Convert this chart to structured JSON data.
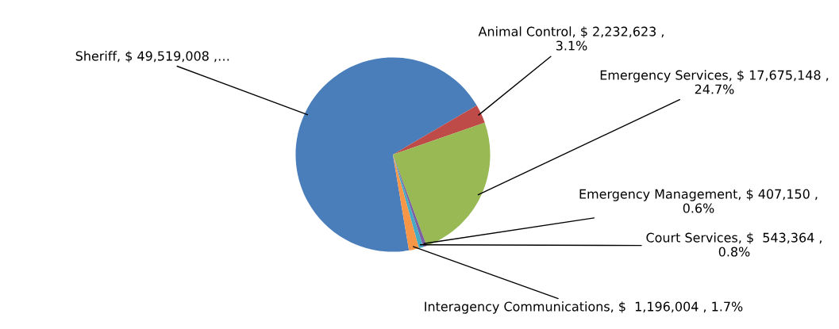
{
  "chart_data": {
    "type": "pie",
    "categories": [
      "Sheriff",
      "Animal Control",
      "Emergency Services",
      "Emergency Management",
      "Court Services",
      "Interagency Communications"
    ],
    "values": [
      49519008,
      2232623,
      17675148,
      407150,
      543364,
      1196004
    ],
    "colors": [
      "#4a7ebb",
      "#be4b48",
      "#98b954",
      "#7d60a0",
      "#46aac5",
      "#f79646"
    ],
    "value_labels": [
      "$ 49,519,008 ,…",
      "$ 2,232,623 , 3.1%",
      "$ 17,675,148 , 24.7%",
      "$ 407,150 , 0.6%",
      "$  543,364 , 0.8%",
      "$  1,196,004 , 1.7%"
    ]
  }
}
